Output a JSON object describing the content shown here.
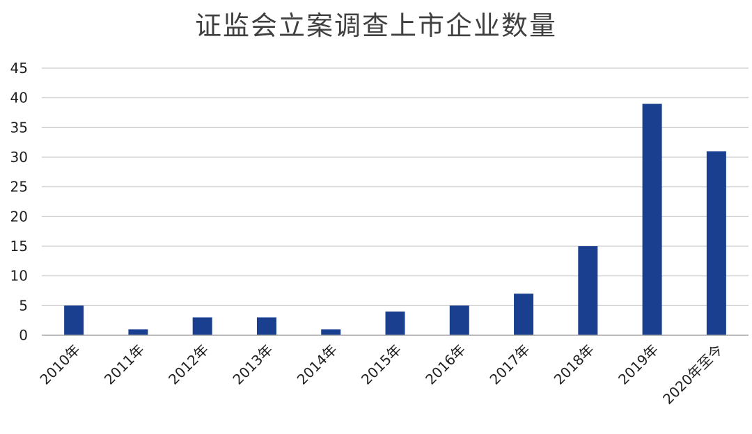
{
  "chart_data": {
    "type": "bar",
    "title": "证监会立案调查上市企业数量",
    "xlabel": "",
    "ylabel": "",
    "categories": [
      "2010年",
      "2011年",
      "2012年",
      "2013年",
      "2014年",
      "2015年",
      "2016年",
      "2017年",
      "2018年",
      "2019年",
      "2020年至今"
    ],
    "values": [
      5,
      1,
      3,
      3,
      1,
      4,
      5,
      7,
      15,
      39,
      31
    ],
    "ylim": [
      0,
      45
    ],
    "yticks": [
      0,
      5,
      10,
      15,
      20,
      25,
      30,
      35,
      40,
      45
    ],
    "grid": true,
    "legend": "none",
    "colors": {
      "bar": "#1a3f8f",
      "grid": "#c9c9c9",
      "axis": "#a6a6a6"
    }
  }
}
